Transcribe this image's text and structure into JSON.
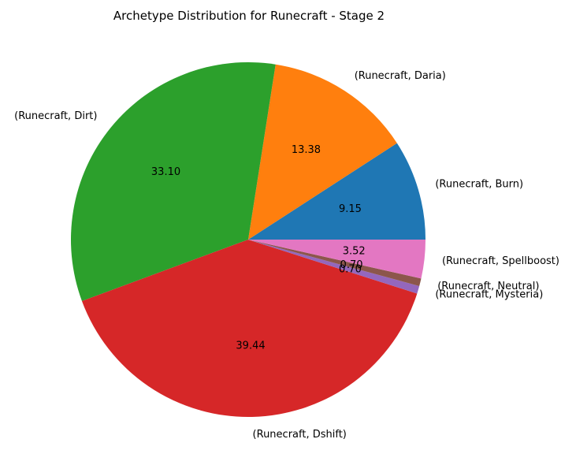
{
  "chart_data": {
    "type": "pie",
    "title": "Archetype Distribution for Runecraft - Stage 2",
    "slices": [
      {
        "label": "(Runecraft, Burn)",
        "value": 9.15,
        "pct_label": "9.15",
        "color": "#1f77b4"
      },
      {
        "label": "(Runecraft, Daria)",
        "value": 13.38,
        "pct_label": "13.38",
        "color": "#ff7f0e"
      },
      {
        "label": "(Runecraft, Dirt)",
        "value": 33.1,
        "pct_label": "33.10",
        "color": "#2ca02c"
      },
      {
        "label": "(Runecraft, Dshift)",
        "value": 39.44,
        "pct_label": "39.44",
        "color": "#d62728"
      },
      {
        "label": "(Runecraft, Mysteria)",
        "value": 0.7,
        "pct_label": "0.70",
        "color": "#9467bd"
      },
      {
        "label": "(Runecraft, Neutral)",
        "value": 0.7,
        "pct_label": "0.70",
        "color": "#8c564b"
      },
      {
        "label": "(Runecraft, Spellboost)",
        "value": 3.52,
        "pct_label": "3.52",
        "color": "#e377c2"
      }
    ]
  }
}
